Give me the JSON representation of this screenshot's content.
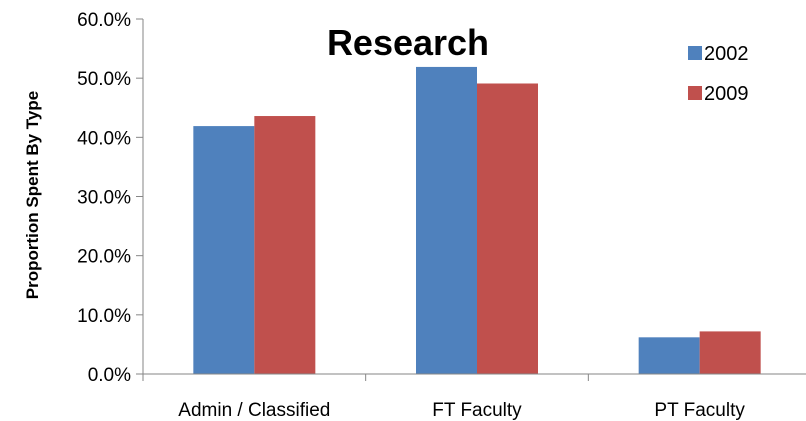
{
  "chart_data": {
    "type": "bar",
    "title": "Research",
    "xlabel": "",
    "ylabel": "Proportion Spent By Type",
    "categories": [
      "Admin / Classified",
      "FT Faculty",
      "PT Faculty"
    ],
    "series": [
      {
        "name": "2002",
        "values": [
          0.419,
          0.519,
          0.062
        ],
        "color": "#4F81BD"
      },
      {
        "name": "2009",
        "values": [
          0.436,
          0.491,
          0.072
        ],
        "color": "#C0504D"
      }
    ],
    "ylim": [
      0,
      0.6
    ],
    "yticks": [
      0,
      0.1,
      0.2,
      0.3,
      0.4,
      0.5,
      0.6
    ],
    "ytick_labels": [
      "0.0%",
      "10.0%",
      "20.0%",
      "30.0%",
      "40.0%",
      "50.0%",
      "60.0%"
    ],
    "grid": false,
    "legend_position": "top-right"
  }
}
